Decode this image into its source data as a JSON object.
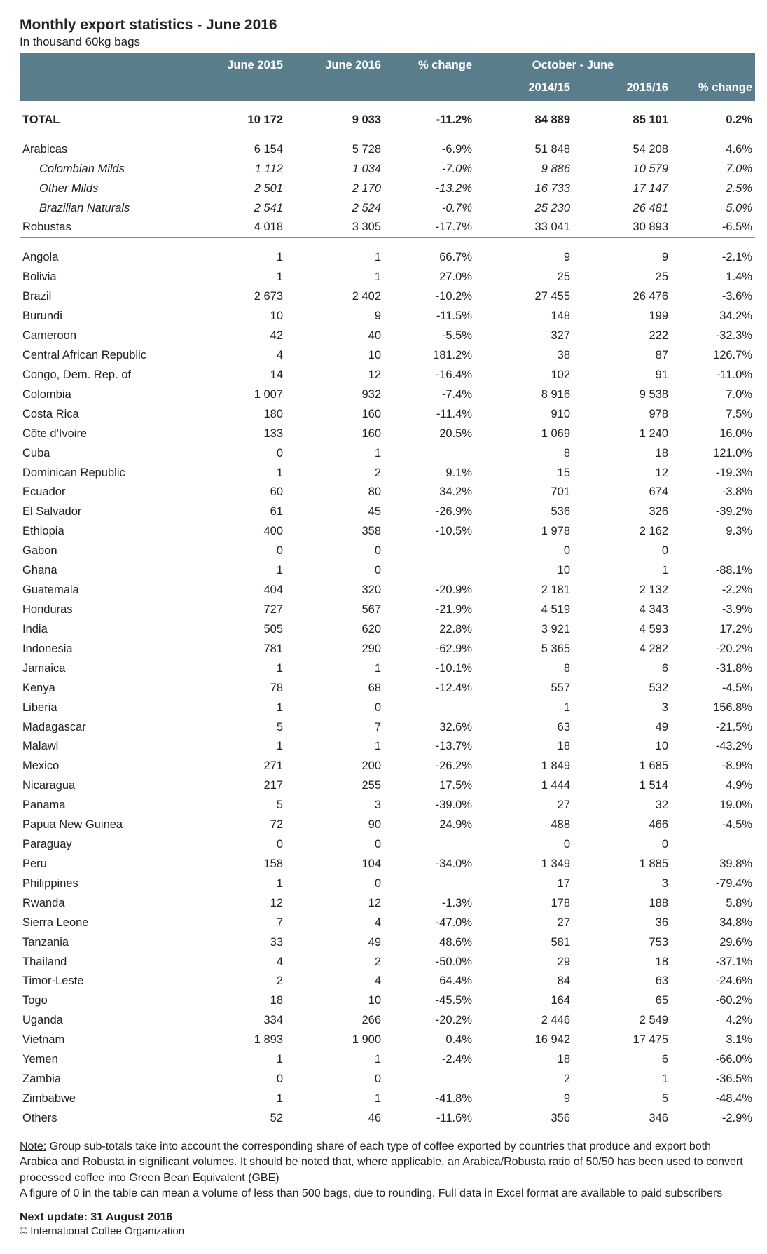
{
  "header": {
    "title": "Monthly export statistics - June 2016",
    "subtitle": "In thousand 60kg bags"
  },
  "columns": {
    "c1": "June 2015",
    "c2": "June 2016",
    "c3": "% change",
    "group": "October - June",
    "c4": "2014/15",
    "c5": "2015/16",
    "c6": "% change"
  },
  "total": {
    "label": "TOTAL",
    "v": [
      "10 172",
      "9 033",
      "-11.2%",
      "84 889",
      "85 101",
      "0.2%"
    ]
  },
  "groups": [
    {
      "label": "Arabicas",
      "v": [
        "6 154",
        "5 728",
        "-6.9%",
        "51 848",
        "54 208",
        "4.6%"
      ]
    },
    {
      "label": "Colombian Milds",
      "italic": true,
      "v": [
        "1 112",
        "1 034",
        "-7.0%",
        "9 886",
        "10 579",
        "7.0%"
      ]
    },
    {
      "label": "Other Milds",
      "italic": true,
      "v": [
        "2 501",
        "2 170",
        "-13.2%",
        "16 733",
        "17 147",
        "2.5%"
      ]
    },
    {
      "label": "Brazilian Naturals",
      "italic": true,
      "v": [
        "2 541",
        "2 524",
        "-0.7%",
        "25 230",
        "26 481",
        "5.0%"
      ]
    },
    {
      "label": "Robustas",
      "sep": true,
      "v": [
        "4 018",
        "3 305",
        "-17.7%",
        "33 041",
        "30 893",
        "-6.5%"
      ]
    }
  ],
  "countries": [
    {
      "label": "Angola",
      "v": [
        "1",
        "1",
        "66.7%",
        "9",
        "9",
        "-2.1%"
      ]
    },
    {
      "label": "Bolivia",
      "v": [
        "1",
        "1",
        "27.0%",
        "25",
        "25",
        "1.4%"
      ]
    },
    {
      "label": "Brazil",
      "v": [
        "2 673",
        "2 402",
        "-10.2%",
        "27 455",
        "26 476",
        "-3.6%"
      ]
    },
    {
      "label": "Burundi",
      "v": [
        "10",
        "9",
        "-11.5%",
        "148",
        "199",
        "34.2%"
      ]
    },
    {
      "label": "Cameroon",
      "v": [
        "42",
        "40",
        "-5.5%",
        "327",
        "222",
        "-32.3%"
      ]
    },
    {
      "label": "Central African Republic",
      "v": [
        "4",
        "10",
        "181.2%",
        "38",
        "87",
        "126.7%"
      ]
    },
    {
      "label": "Congo, Dem. Rep. of",
      "v": [
        "14",
        "12",
        "-16.4%",
        "102",
        "91",
        "-11.0%"
      ]
    },
    {
      "label": "Colombia",
      "v": [
        "1 007",
        "932",
        "-7.4%",
        "8 916",
        "9 538",
        "7.0%"
      ]
    },
    {
      "label": "Costa Rica",
      "v": [
        "180",
        "160",
        "-11.4%",
        "910",
        "978",
        "7.5%"
      ]
    },
    {
      "label": "Côte d'Ivoire",
      "v": [
        "133",
        "160",
        "20.5%",
        "1 069",
        "1 240",
        "16.0%"
      ]
    },
    {
      "label": "Cuba",
      "v": [
        "0",
        "1",
        "",
        "8",
        "18",
        "121.0%"
      ]
    },
    {
      "label": "Dominican Republic",
      "v": [
        "1",
        "2",
        "9.1%",
        "15",
        "12",
        "-19.3%"
      ]
    },
    {
      "label": "Ecuador",
      "v": [
        "60",
        "80",
        "34.2%",
        "701",
        "674",
        "-3.8%"
      ]
    },
    {
      "label": "El Salvador",
      "v": [
        "61",
        "45",
        "-26.9%",
        "536",
        "326",
        "-39.2%"
      ]
    },
    {
      "label": "Ethiopia",
      "v": [
        "400",
        "358",
        "-10.5%",
        "1 978",
        "2 162",
        "9.3%"
      ]
    },
    {
      "label": "Gabon",
      "v": [
        "0",
        "0",
        "",
        "0",
        "0",
        ""
      ]
    },
    {
      "label": "Ghana",
      "v": [
        "1",
        "0",
        "",
        "10",
        "1",
        "-88.1%"
      ]
    },
    {
      "label": "Guatemala",
      "v": [
        "404",
        "320",
        "-20.9%",
        "2 181",
        "2 132",
        "-2.2%"
      ]
    },
    {
      "label": "Honduras",
      "v": [
        "727",
        "567",
        "-21.9%",
        "4 519",
        "4 343",
        "-3.9%"
      ]
    },
    {
      "label": "India",
      "v": [
        "505",
        "620",
        "22.8%",
        "3 921",
        "4 593",
        "17.2%"
      ]
    },
    {
      "label": "Indonesia",
      "v": [
        "781",
        "290",
        "-62.9%",
        "5 365",
        "4 282",
        "-20.2%"
      ]
    },
    {
      "label": "Jamaica",
      "v": [
        "1",
        "1",
        "-10.1%",
        "8",
        "6",
        "-31.8%"
      ]
    },
    {
      "label": "Kenya",
      "v": [
        "78",
        "68",
        "-12.4%",
        "557",
        "532",
        "-4.5%"
      ]
    },
    {
      "label": "Liberia",
      "v": [
        "1",
        "0",
        "",
        "1",
        "3",
        "156.8%"
      ]
    },
    {
      "label": "Madagascar",
      "v": [
        "5",
        "7",
        "32.6%",
        "63",
        "49",
        "-21.5%"
      ]
    },
    {
      "label": "Malawi",
      "v": [
        "1",
        "1",
        "-13.7%",
        "18",
        "10",
        "-43.2%"
      ]
    },
    {
      "label": "Mexico",
      "v": [
        "271",
        "200",
        "-26.2%",
        "1 849",
        "1 685",
        "-8.9%"
      ]
    },
    {
      "label": "Nicaragua",
      "v": [
        "217",
        "255",
        "17.5%",
        "1 444",
        "1 514",
        "4.9%"
      ]
    },
    {
      "label": "Panama",
      "v": [
        "5",
        "3",
        "-39.0%",
        "27",
        "32",
        "19.0%"
      ]
    },
    {
      "label": "Papua New Guinea",
      "v": [
        "72",
        "90",
        "24.9%",
        "488",
        "466",
        "-4.5%"
      ]
    },
    {
      "label": "Paraguay",
      "v": [
        "0",
        "0",
        "",
        "0",
        "0",
        ""
      ]
    },
    {
      "label": "Peru",
      "v": [
        "158",
        "104",
        "-34.0%",
        "1 349",
        "1 885",
        "39.8%"
      ]
    },
    {
      "label": "Philippines",
      "v": [
        "1",
        "0",
        "",
        "17",
        "3",
        "-79.4%"
      ]
    },
    {
      "label": "Rwanda",
      "v": [
        "12",
        "12",
        "-1.3%",
        "178",
        "188",
        "5.8%"
      ]
    },
    {
      "label": "Sierra Leone",
      "v": [
        "7",
        "4",
        "-47.0%",
        "27",
        "36",
        "34.8%"
      ]
    },
    {
      "label": "Tanzania",
      "v": [
        "33",
        "49",
        "48.6%",
        "581",
        "753",
        "29.6%"
      ]
    },
    {
      "label": "Thailand",
      "v": [
        "4",
        "2",
        "-50.0%",
        "29",
        "18",
        "-37.1%"
      ]
    },
    {
      "label": "Timor-Leste",
      "v": [
        "2",
        "4",
        "64.4%",
        "84",
        "63",
        "-24.6%"
      ]
    },
    {
      "label": "Togo",
      "v": [
        "18",
        "10",
        "-45.5%",
        "164",
        "65",
        "-60.2%"
      ]
    },
    {
      "label": "Uganda",
      "v": [
        "334",
        "266",
        "-20.2%",
        "2 446",
        "2 549",
        "4.2%"
      ]
    },
    {
      "label": "Vietnam",
      "v": [
        "1 893",
        "1 900",
        "0.4%",
        "16 942",
        "17 475",
        "3.1%"
      ]
    },
    {
      "label": "Yemen",
      "v": [
        "1",
        "1",
        "-2.4%",
        "18",
        "6",
        "-66.0%"
      ]
    },
    {
      "label": "Zambia",
      "v": [
        "0",
        "0",
        "",
        "2",
        "1",
        "-36.5%"
      ]
    },
    {
      "label": "Zimbabwe",
      "v": [
        "1",
        "1",
        "-41.8%",
        "9",
        "5",
        "-48.4%"
      ]
    },
    {
      "label": "Others",
      "sep": true,
      "v": [
        "52",
        "46",
        "-11.6%",
        "356",
        "346",
        "-2.9%"
      ]
    }
  ],
  "notes": {
    "label": "Note:",
    "p1": " Group sub-totals take into account the corresponding share of each type of coffee exported by countries that produce and export both Arabica and Robusta in significant volumes.  It should be noted that, where applicable, an Arabica/Robusta ratio of 50/50 has been used to convert processed coffee into Green Bean Equivalent (GBE)",
    "p2": "A figure of 0 in the table can mean a volume of less than 500 bags, due to rounding. Full data in Excel format are available to paid subscribers"
  },
  "footer": {
    "next_update": "Next update: 31 August 2016",
    "copyright": "© International Coffee Organization"
  },
  "style": {
    "header_bg": "#5a7d8c",
    "header_fg": "#ffffff",
    "body_bg": "#ffffff",
    "text": "#222222",
    "rule": "#888888"
  }
}
